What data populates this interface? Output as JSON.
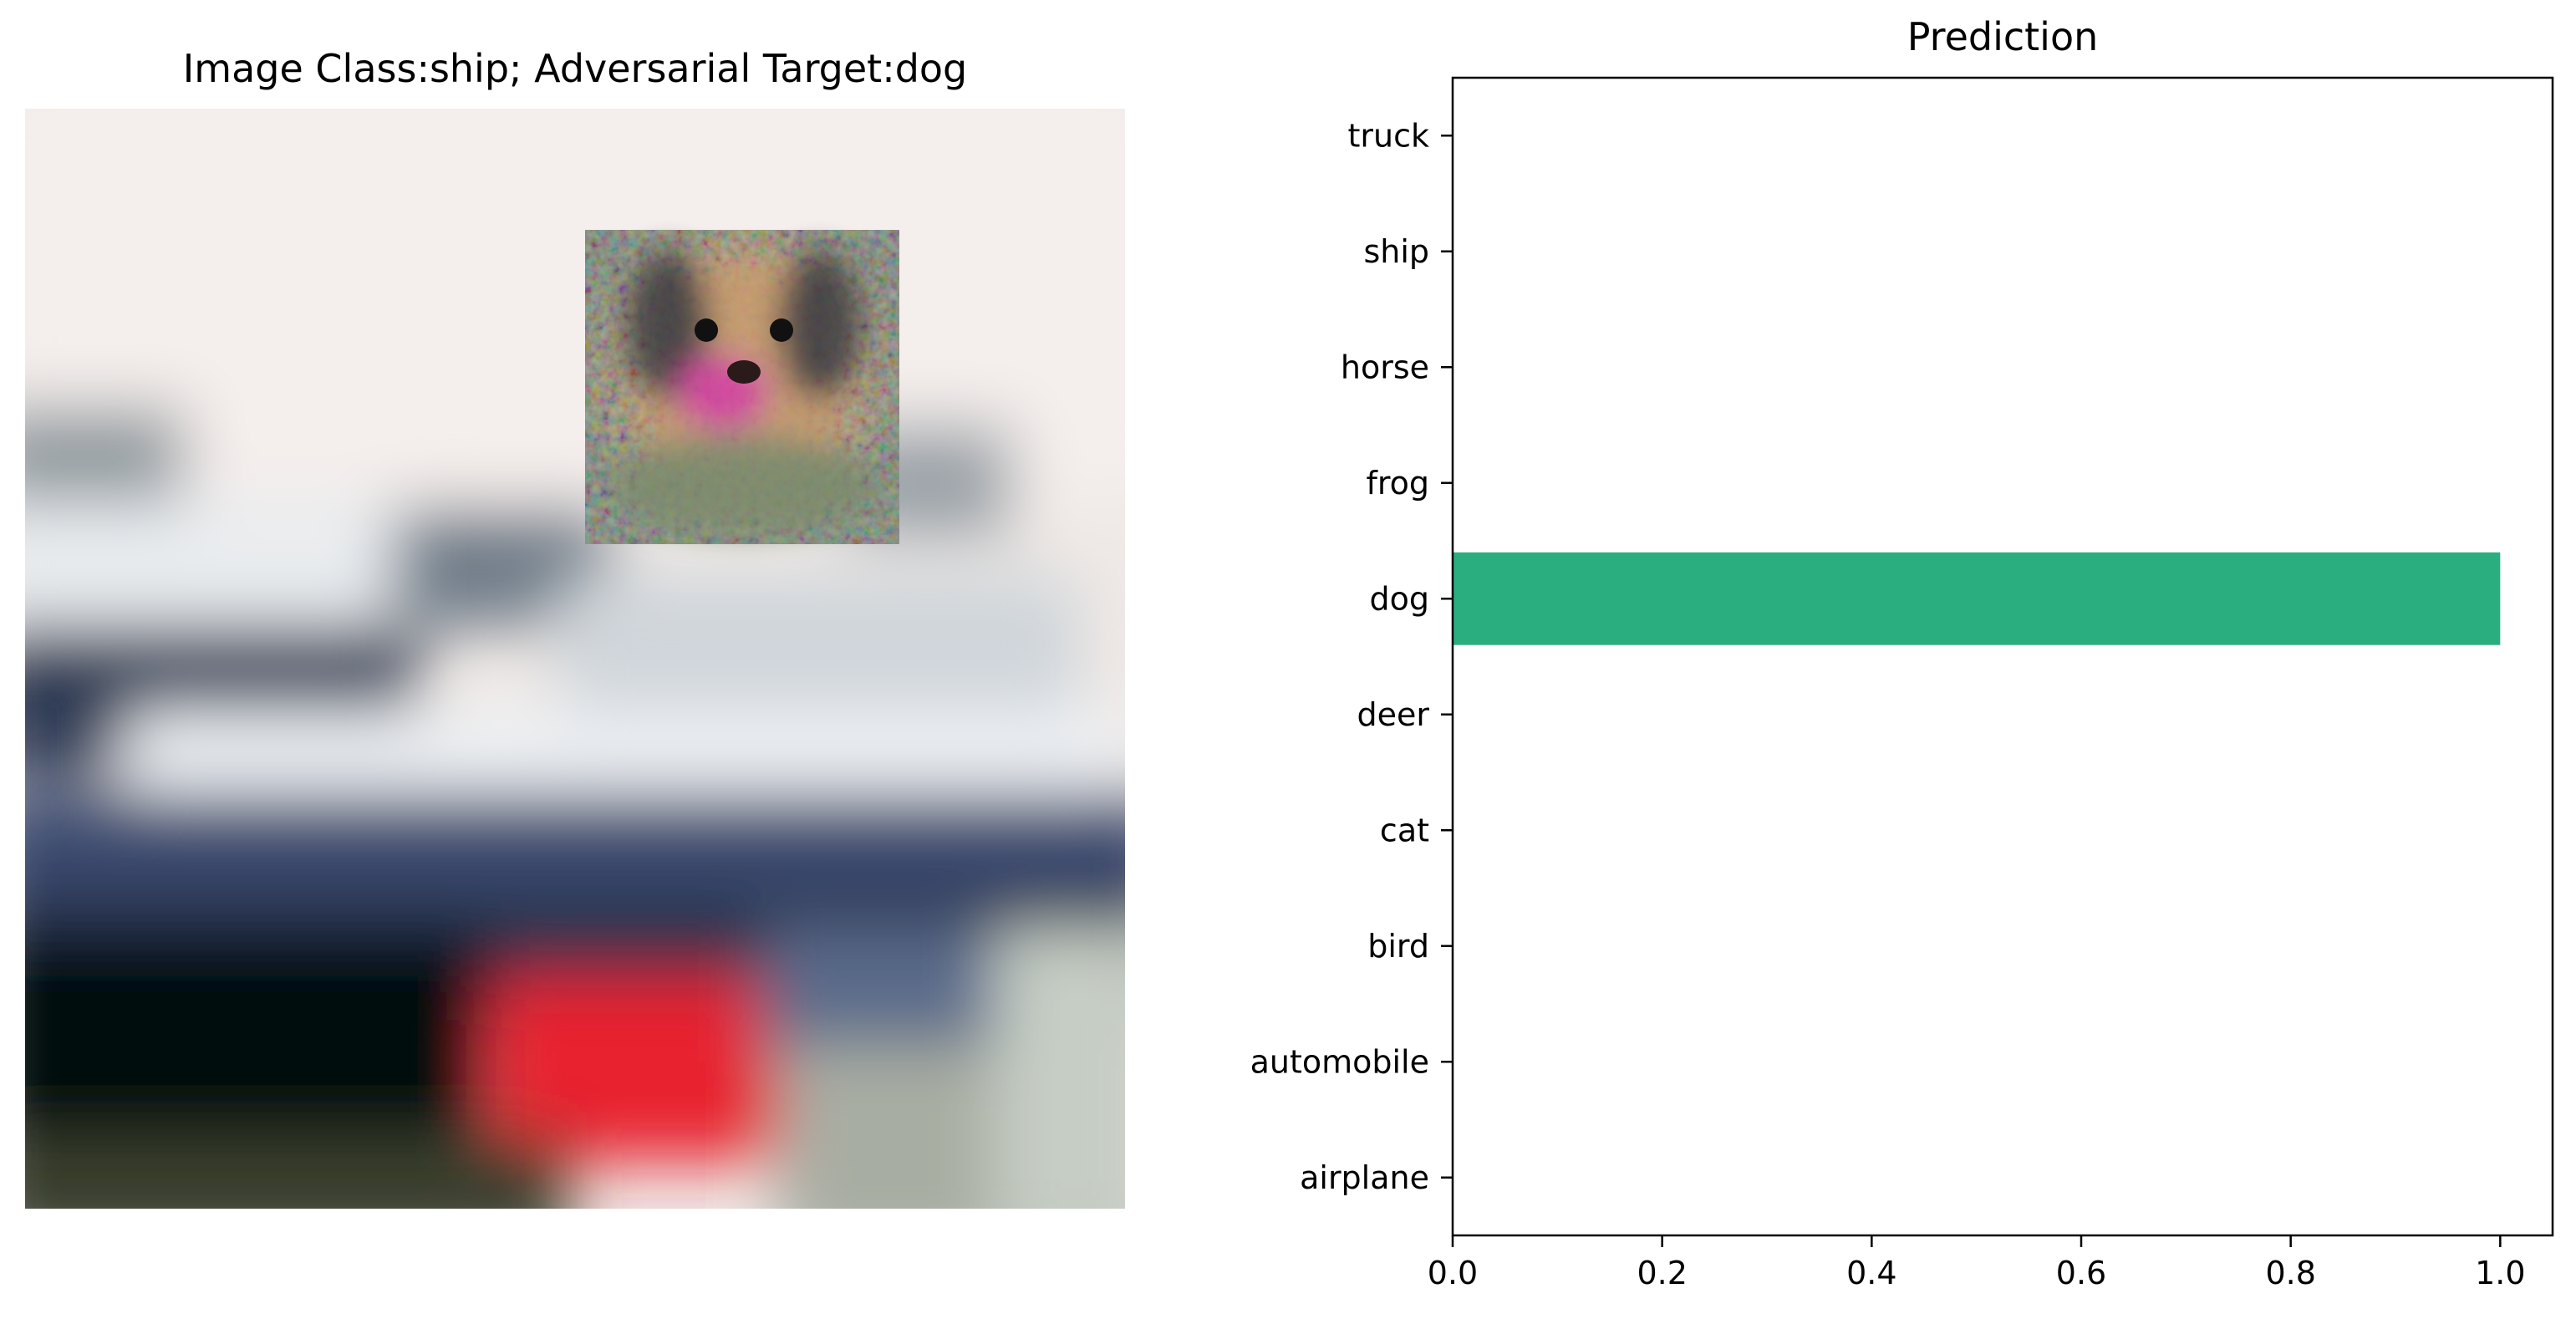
{
  "left_panel": {
    "title": "Image Class:ship; Adversarial Target:dog"
  },
  "chart_data": {
    "type": "bar",
    "orientation": "horizontal",
    "title": "Prediction",
    "categories": [
      "airplane",
      "automobile",
      "bird",
      "cat",
      "deer",
      "dog",
      "frog",
      "horse",
      "ship",
      "truck"
    ],
    "values": [
      0.0,
      0.0,
      0.0,
      0.0,
      0.0,
      1.0,
      0.0,
      0.0,
      0.0,
      0.0
    ],
    "xlabel": "",
    "ylabel": "",
    "xlim": [
      0.0,
      1.05
    ],
    "xticks": [
      "0.0",
      "0.2",
      "0.4",
      "0.6",
      "0.8",
      "1.0"
    ],
    "bar_color": "#2aae80",
    "grid": false
  }
}
